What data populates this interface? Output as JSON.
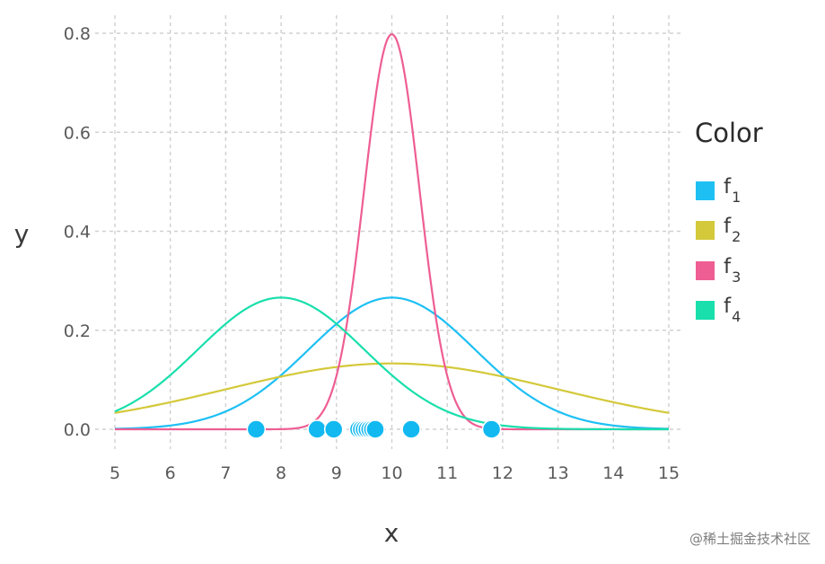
{
  "chart_data": {
    "type": "line",
    "title": "",
    "xlabel": "x",
    "ylabel": "y",
    "xlim": [
      5,
      15
    ],
    "ylim": [
      0,
      0.8
    ],
    "xticks": [
      5,
      6,
      7,
      8,
      9,
      10,
      11,
      12,
      13,
      14,
      15
    ],
    "yticks": [
      0.0,
      0.2,
      0.4,
      0.6,
      0.8
    ],
    "ytick_labels": [
      "0.0",
      "0.2",
      "0.4",
      "0.6",
      "0.8"
    ],
    "grid": true,
    "legend": {
      "title": "Color",
      "placement": "right",
      "entries": [
        {
          "base": "f",
          "sub": "1",
          "color": "#1ec0f4"
        },
        {
          "base": "f",
          "sub": "2",
          "color": "#d3c93a"
        },
        {
          "base": "f",
          "sub": "3",
          "color": "#ee5e93"
        },
        {
          "base": "f",
          "sub": "4",
          "color": "#19dfac"
        }
      ]
    },
    "series": [
      {
        "name": "f1",
        "color": "#1ec0f4",
        "distribution": "normal",
        "mean": 10,
        "sd": 1.5
      },
      {
        "name": "f2",
        "color": "#d3c93a",
        "distribution": "normal",
        "mean": 10,
        "sd": 3
      },
      {
        "name": "f3",
        "color": "#ee5e93",
        "distribution": "normal",
        "mean": 10,
        "sd": 0.5
      },
      {
        "name": "f4",
        "color": "#19dfac",
        "distribution": "normal",
        "mean": 8,
        "sd": 1.5
      }
    ],
    "points": {
      "color": "#12b9f1",
      "x": [
        7.55,
        8.65,
        8.95,
        9.4,
        9.45,
        9.5,
        9.55,
        9.6,
        9.65,
        9.7,
        10.35,
        11.8
      ],
      "y": [
        0,
        0,
        0,
        0,
        0,
        0,
        0,
        0,
        0,
        0,
        0,
        0
      ]
    }
  },
  "watermark": "@稀土掘金技术社区"
}
